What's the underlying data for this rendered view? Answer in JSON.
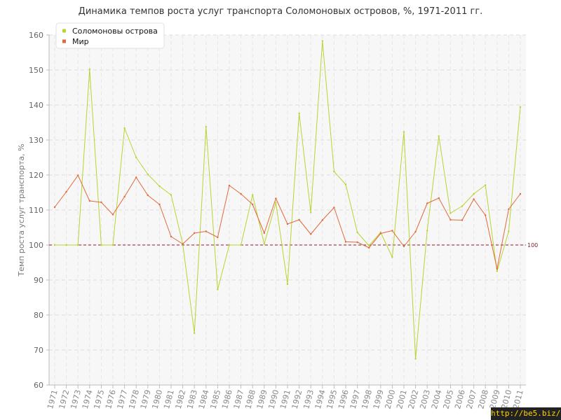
{
  "chart_data": {
    "type": "line",
    "title": "Динамика темпов роста услуг транспорта Соломоновых островов, %, 1971-2011 гг.",
    "ylabel": "Темп роста услуг транспорта, %",
    "xlabel": "",
    "ylim": [
      60,
      160
    ],
    "yticks": [
      60,
      70,
      80,
      90,
      100,
      110,
      120,
      130,
      140,
      150,
      160
    ],
    "grid": true,
    "legend_position": "top-left",
    "reference_line": {
      "value": 100,
      "label": "100",
      "color": "#8b1a2b"
    },
    "x": [
      "1971",
      "1972",
      "1973",
      "1974",
      "1975",
      "1976",
      "1977",
      "1978",
      "1979",
      "1980",
      "1981",
      "1982",
      "1983",
      "1984",
      "1985",
      "1986",
      "1987",
      "1988",
      "1989",
      "1990",
      "1991",
      "1992",
      "1993",
      "1994",
      "1995",
      "1996",
      "1997",
      "1998",
      "1999",
      "2000",
      "2001",
      "2002",
      "2003",
      "2004",
      "2005",
      "2006",
      "2007",
      "2008",
      "2009",
      "2010",
      "2011"
    ],
    "series": [
      {
        "name": "Соломоновы острова",
        "color": "#b8d432",
        "values": [
          100,
          100,
          100,
          150.2,
          100,
          100,
          133.4,
          125,
          120.2,
          116.8,
          114.3,
          100.3,
          74.8,
          133.8,
          87.3,
          100,
          100,
          114.3,
          100.3,
          112.1,
          88.8,
          137.6,
          109.3,
          158.3,
          121,
          117.3,
          103.6,
          99.8,
          103.6,
          96.5,
          132.3,
          67.5,
          104.1,
          131.1,
          109.1,
          111.1,
          114.6,
          117.1,
          92.5,
          103.9,
          139.4
        ]
      },
      {
        "name": "Мир",
        "color": "#e06a3b",
        "values": [
          110.8,
          115.2,
          119.9,
          112.6,
          112.2,
          108.7,
          113.8,
          119.3,
          114.2,
          111.6,
          102.4,
          100.3,
          103.4,
          103.9,
          102.2,
          117,
          114.6,
          111.6,
          103.4,
          113.3,
          106,
          107.2,
          103.1,
          107.1,
          110.7,
          100.9,
          100.8,
          99.2,
          103.3,
          104.1,
          99.6,
          103.8,
          111.9,
          113.4,
          107.2,
          107.1,
          113.1,
          108.5,
          93.2,
          110.2,
          114.6
        ]
      }
    ]
  },
  "watermark": "http://be5.biz/"
}
